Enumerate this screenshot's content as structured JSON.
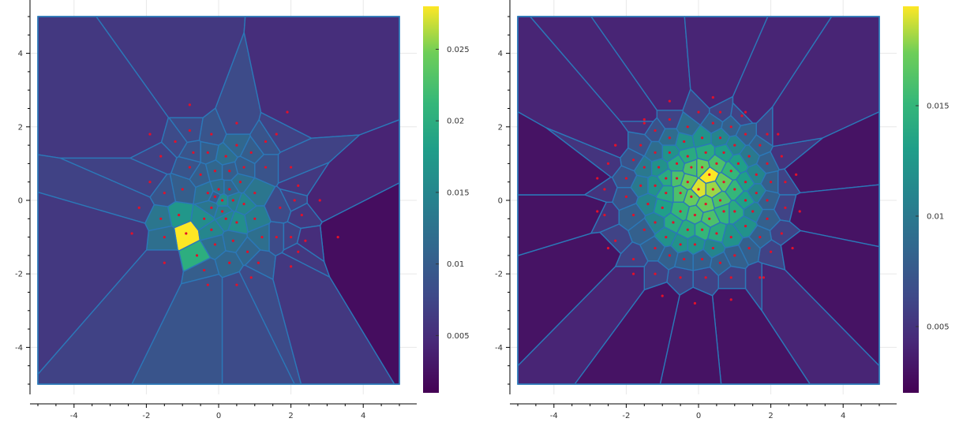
{
  "chart_data": [
    {
      "type": "voronoi-density",
      "title": "",
      "xlabel": "",
      "ylabel": "",
      "xlim": [
        -5,
        5
      ],
      "ylim": [
        -5,
        5
      ],
      "xticks": [
        "-4",
        "-2",
        "0",
        "2",
        "4"
      ],
      "yticks": [
        "4",
        "2",
        "0",
        "-2",
        "-4"
      ],
      "xtick_values": [
        -4,
        -2,
        0,
        2,
        4
      ],
      "ytick_values": [
        4,
        2,
        0,
        -2,
        -4
      ],
      "colormap": "viridis",
      "color_range": [
        0.001,
        0.028
      ],
      "colorbar_ticks": [
        "0.025",
        "0.02",
        "0.015",
        "0.01",
        "0.005"
      ],
      "colorbar_tick_values": [
        0.025,
        0.02,
        0.015,
        0.01,
        0.005
      ],
      "boundary_color": "#2b78b8",
      "point_color": "#e3102a",
      "grid": true,
      "points": [
        [
          -0.9,
          -0.9,
          0.028
        ],
        [
          -0.6,
          -1.5,
          0.02
        ],
        [
          -1.1,
          -0.4,
          0.017
        ],
        [
          -1.6,
          -0.5,
          0.013
        ],
        [
          -1.5,
          -1.0,
          0.012
        ],
        [
          -0.4,
          -0.5,
          0.016
        ],
        [
          -0.2,
          -0.8,
          0.015
        ],
        [
          0.1,
          -0.3,
          0.014
        ],
        [
          0.5,
          -0.6,
          0.016
        ],
        [
          0.7,
          -0.1,
          0.015
        ],
        [
          0.4,
          0.0,
          0.014
        ],
        [
          0.2,
          -0.5,
          0.015
        ],
        [
          -0.2,
          -0.2,
          0.013
        ],
        [
          -0.3,
          0.2,
          0.012
        ],
        [
          0.0,
          0.3,
          0.012
        ],
        [
          0.1,
          0.0,
          0.016
        ],
        [
          -0.1,
          0.1,
          0.01
        ],
        [
          0.3,
          0.3,
          0.011
        ],
        [
          0.6,
          0.5,
          0.012
        ],
        [
          1.0,
          0.2,
          0.013
        ],
        [
          1.0,
          -0.5,
          0.014
        ],
        [
          1.2,
          -1.0,
          0.012
        ],
        [
          0.8,
          -1.4,
          0.011
        ],
        [
          0.4,
          -1.1,
          0.012
        ],
        [
          -0.1,
          -1.2,
          0.012
        ],
        [
          0.3,
          -1.7,
          0.011
        ],
        [
          -0.4,
          -1.9,
          0.01
        ],
        [
          -1.0,
          0.3,
          0.01
        ],
        [
          -1.5,
          0.2,
          0.009
        ],
        [
          -0.8,
          0.9,
          0.009
        ],
        [
          -0.5,
          0.7,
          0.01
        ],
        [
          -0.1,
          0.8,
          0.011
        ],
        [
          0.3,
          0.8,
          0.01
        ],
        [
          0.7,
          0.9,
          0.01
        ],
        [
          0.2,
          1.2,
          0.012
        ],
        [
          -0.3,
          1.3,
          0.01
        ],
        [
          -0.7,
          1.3,
          0.009
        ],
        [
          0.5,
          1.5,
          0.011
        ],
        [
          0.9,
          1.3,
          0.01
        ],
        [
          1.3,
          0.9,
          0.009
        ],
        [
          1.3,
          1.6,
          0.009
        ],
        [
          0.5,
          2.1,
          0.008
        ],
        [
          -0.8,
          1.9,
          0.008
        ],
        [
          -1.2,
          1.6,
          0.008
        ],
        [
          -1.6,
          1.2,
          0.007
        ],
        [
          -0.2,
          1.8,
          0.009
        ],
        [
          -0.8,
          2.6,
          0.006
        ],
        [
          1.9,
          2.4,
          0.005
        ],
        [
          -1.9,
          1.8,
          0.006
        ],
        [
          -1.9,
          0.5,
          0.007
        ],
        [
          -2.2,
          -0.2,
          0.007
        ],
        [
          -2.4,
          -0.9,
          0.006
        ],
        [
          -1.5,
          -1.7,
          0.007
        ],
        [
          -0.3,
          -2.3,
          0.009
        ],
        [
          0.5,
          -2.3,
          0.008
        ],
        [
          0.9,
          -2.1,
          0.008
        ],
        [
          1.1,
          -1.7,
          0.009
        ],
        [
          1.6,
          -1.0,
          0.008
        ],
        [
          2.0,
          -1.0,
          0.007
        ],
        [
          2.2,
          -1.4,
          0.006
        ],
        [
          2.0,
          -1.8,
          0.006
        ],
        [
          1.7,
          -0.2,
          0.008
        ],
        [
          2.1,
          0.0,
          0.007
        ],
        [
          2.3,
          -0.4,
          0.006
        ],
        [
          2.8,
          0.0,
          0.004
        ],
        [
          3.3,
          -1.0,
          0.002
        ],
        [
          2.4,
          -1.1,
          0.005
        ],
        [
          2.2,
          0.4,
          0.006
        ],
        [
          2.0,
          0.9,
          0.007
        ],
        [
          1.6,
          1.8,
          0.007
        ]
      ]
    },
    {
      "type": "voronoi-density",
      "title": "",
      "xlabel": "",
      "ylabel": "",
      "xlim": [
        -5,
        5
      ],
      "ylim": [
        -5,
        5
      ],
      "xticks": [
        "-4",
        "-2",
        "0",
        "2",
        "4"
      ],
      "yticks": [
        "4",
        "2",
        "0",
        "-2",
        "-4"
      ],
      "xtick_values": [
        -4,
        -2,
        0,
        2,
        4
      ],
      "ytick_values": [
        4,
        2,
        0,
        -2,
        -4
      ],
      "colormap": "viridis",
      "color_range": [
        0.002,
        0.0195
      ],
      "colorbar_ticks": [
        "0.015",
        "0.01",
        "0.005"
      ],
      "colorbar_tick_values": [
        0.015,
        0.01,
        0.005
      ],
      "boundary_color": "#2b78b8",
      "point_color": "#e3102a",
      "grid": true,
      "points": [
        [
          0.3,
          0.7,
          0.0195
        ],
        [
          0.0,
          0.3,
          0.019
        ],
        [
          0.4,
          0.3,
          0.018
        ],
        [
          -0.3,
          0.5,
          0.017
        ],
        [
          0.7,
          0.5,
          0.017
        ],
        [
          0.1,
          0.9,
          0.017
        ],
        [
          -0.2,
          0.1,
          0.017
        ],
        [
          0.2,
          -0.1,
          0.017
        ],
        [
          0.6,
          0.0,
          0.016
        ],
        [
          -0.5,
          0.2,
          0.016
        ],
        [
          -0.6,
          0.6,
          0.016
        ],
        [
          -0.2,
          0.9,
          0.016
        ],
        [
          0.5,
          1.0,
          0.016
        ],
        [
          0.9,
          0.8,
          0.015
        ],
        [
          1.0,
          0.3,
          0.015
        ],
        [
          -0.1,
          -0.4,
          0.016
        ],
        [
          0.3,
          -0.5,
          0.016
        ],
        [
          0.7,
          -0.3,
          0.015
        ],
        [
          -0.5,
          -0.3,
          0.015
        ],
        [
          -0.9,
          0.2,
          0.014
        ],
        [
          -0.9,
          0.6,
          0.014
        ],
        [
          -0.6,
          1.0,
          0.014
        ],
        [
          -0.3,
          1.2,
          0.014
        ],
        [
          0.2,
          1.3,
          0.014
        ],
        [
          0.7,
          1.3,
          0.013
        ],
        [
          1.1,
          1.0,
          0.013
        ],
        [
          1.3,
          0.5,
          0.013
        ],
        [
          1.3,
          0.0,
          0.013
        ],
        [
          1.0,
          -0.3,
          0.014
        ],
        [
          0.5,
          -0.9,
          0.014
        ],
        [
          0.1,
          -0.8,
          0.015
        ],
        [
          -0.3,
          -0.8,
          0.014
        ],
        [
          -0.7,
          -0.6,
          0.014
        ],
        [
          -1.0,
          -0.2,
          0.013
        ],
        [
          -1.2,
          0.4,
          0.012
        ],
        [
          -1.1,
          0.9,
          0.012
        ],
        [
          -0.8,
          1.3,
          0.012
        ],
        [
          -0.4,
          1.6,
          0.012
        ],
        [
          0.1,
          1.7,
          0.012
        ],
        [
          0.6,
          1.7,
          0.011
        ],
        [
          1.0,
          1.5,
          0.011
        ],
        [
          1.4,
          1.2,
          0.01
        ],
        [
          1.6,
          0.7,
          0.011
        ],
        [
          1.6,
          0.2,
          0.011
        ],
        [
          1.5,
          -0.3,
          0.011
        ],
        [
          1.3,
          -0.7,
          0.012
        ],
        [
          0.9,
          -1.0,
          0.012
        ],
        [
          0.4,
          -1.3,
          0.011
        ],
        [
          -0.1,
          -1.2,
          0.012
        ],
        [
          -0.5,
          -1.2,
          0.012
        ],
        [
          -0.9,
          -1.0,
          0.012
        ],
        [
          -1.2,
          -0.6,
          0.011
        ],
        [
          -1.4,
          -0.1,
          0.011
        ],
        [
          -1.6,
          0.4,
          0.01
        ],
        [
          -1.5,
          0.9,
          0.01
        ],
        [
          -1.2,
          1.3,
          0.009
        ],
        [
          -0.8,
          1.7,
          0.009
        ],
        [
          -0.3,
          2.0,
          0.009
        ],
        [
          0.4,
          2.1,
          0.008
        ],
        [
          0.9,
          2.0,
          0.008
        ],
        [
          1.3,
          1.8,
          0.008
        ],
        [
          1.7,
          1.5,
          0.008
        ],
        [
          1.9,
          1.0,
          0.008
        ],
        [
          2.0,
          0.5,
          0.008
        ],
        [
          1.9,
          0.0,
          0.008
        ],
        [
          1.9,
          -0.5,
          0.008
        ],
        [
          1.7,
          -1.0,
          0.008
        ],
        [
          1.4,
          -1.3,
          0.008
        ],
        [
          1.0,
          -1.5,
          0.008
        ],
        [
          0.6,
          -1.7,
          0.008
        ],
        [
          0.1,
          -1.6,
          0.008
        ],
        [
          -0.4,
          -1.6,
          0.008
        ],
        [
          -0.8,
          -1.5,
          0.008
        ],
        [
          -1.2,
          -1.3,
          0.008
        ],
        [
          -1.5,
          -0.8,
          0.008
        ],
        [
          -1.8,
          -0.4,
          0.008
        ],
        [
          -2.0,
          0.1,
          0.007
        ],
        [
          -2.0,
          0.6,
          0.007
        ],
        [
          -1.8,
          1.1,
          0.007
        ],
        [
          -1.6,
          1.5,
          0.007
        ],
        [
          -1.2,
          1.9,
          0.007
        ],
        [
          -0.8,
          2.2,
          0.006
        ],
        [
          0.0,
          2.4,
          0.006
        ],
        [
          0.6,
          2.4,
          0.006
        ],
        [
          1.2,
          2.3,
          0.006
        ],
        [
          1.9,
          1.8,
          0.006
        ],
        [
          2.3,
          1.2,
          0.005
        ],
        [
          2.4,
          0.5,
          0.006
        ],
        [
          2.4,
          -0.2,
          0.006
        ],
        [
          2.3,
          -0.9,
          0.006
        ],
        [
          2.0,
          -1.4,
          0.006
        ],
        [
          1.7,
          -2.1,
          0.005
        ],
        [
          0.9,
          -2.1,
          0.006
        ],
        [
          0.2,
          -2.1,
          0.006
        ],
        [
          -0.5,
          -2.1,
          0.006
        ],
        [
          -1.2,
          -2.0,
          0.006
        ],
        [
          -1.8,
          -1.6,
          0.006
        ],
        [
          -2.3,
          -1.1,
          0.006
        ],
        [
          -2.6,
          -0.4,
          0.005
        ],
        [
          -2.6,
          0.3,
          0.005
        ],
        [
          -2.5,
          1.0,
          0.005
        ],
        [
          -2.3,
          1.5,
          0.005
        ],
        [
          -1.5,
          2.1,
          0.005
        ],
        [
          -0.8,
          2.7,
          0.004
        ],
        [
          0.4,
          2.8,
          0.004
        ],
        [
          1.3,
          2.4,
          0.004
        ],
        [
          2.2,
          1.8,
          0.004
        ],
        [
          2.7,
          0.7,
          0.003
        ],
        [
          2.8,
          -0.3,
          0.003
        ],
        [
          2.6,
          -1.3,
          0.003
        ],
        [
          1.8,
          -2.1,
          0.004
        ],
        [
          0.9,
          -2.7,
          0.003
        ],
        [
          -0.1,
          -2.8,
          0.003
        ],
        [
          -1.0,
          -2.6,
          0.003
        ],
        [
          -1.8,
          -2.0,
          0.004
        ],
        [
          -2.5,
          -1.3,
          0.003
        ],
        [
          -2.8,
          -0.3,
          0.003
        ],
        [
          -2.8,
          0.6,
          0.003
        ],
        [
          -2.3,
          1.5,
          0.004
        ],
        [
          -1.5,
          2.2,
          0.004
        ]
      ]
    }
  ]
}
